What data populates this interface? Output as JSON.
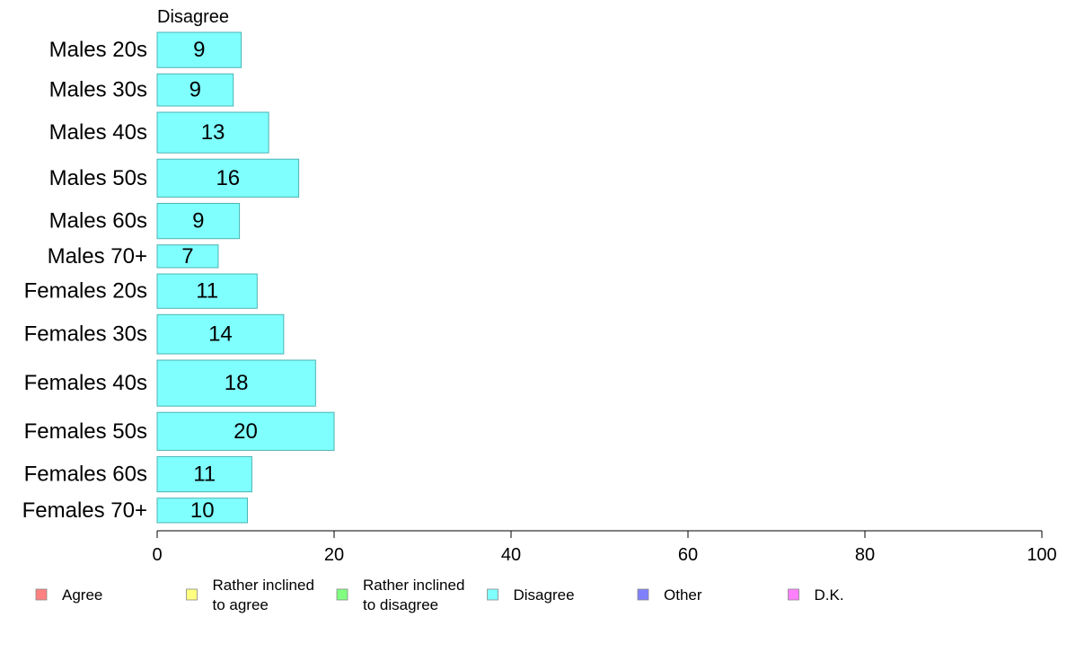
{
  "chart_data": {
    "type": "bar",
    "orientation": "horizontal",
    "title": "Disagree",
    "categories": [
      "Males 20s",
      "Males 30s",
      "Males 40s",
      "Males 50s",
      "Males 60s",
      "Males 70+",
      "Females 20s",
      "Females 30s",
      "Females 40s",
      "Females 50s",
      "Females 60s",
      "Females 70+"
    ],
    "values": [
      9.5,
      8.6,
      12.6,
      16.0,
      9.3,
      6.9,
      11.3,
      14.3,
      17.9,
      20.0,
      10.7,
      10.2
    ],
    "value_labels": [
      "9",
      "9",
      "13",
      "16",
      "9",
      "7",
      "11",
      "14",
      "18",
      "20",
      "11",
      "10"
    ],
    "bar_weights": [
      0.79,
      0.72,
      0.91,
      0.85,
      0.79,
      0.51,
      0.77,
      0.88,
      1.03,
      0.85,
      0.79,
      0.55
    ],
    "xlim": [
      0,
      100
    ],
    "xticks": [
      0,
      20,
      40,
      60,
      80,
      100
    ],
    "grid": false,
    "bar_color": "#80ffff",
    "bar_stroke": "#4cb3b3",
    "legend_position": "bottom",
    "legend": [
      {
        "lines": [
          "Agree"
        ],
        "color": "#ff8080"
      },
      {
        "lines": [
          "Rather inclined",
          "to agree"
        ],
        "color": "#ffff80"
      },
      {
        "lines": [
          "Rather inclined",
          "to disagree"
        ],
        "color": "#80ff80"
      },
      {
        "lines": [
          "Disagree"
        ],
        "color": "#80ffff"
      },
      {
        "lines": [
          "Other"
        ],
        "color": "#8080ff"
      },
      {
        "lines": [
          "D.K."
        ],
        "color": "#ff80ff"
      }
    ]
  }
}
